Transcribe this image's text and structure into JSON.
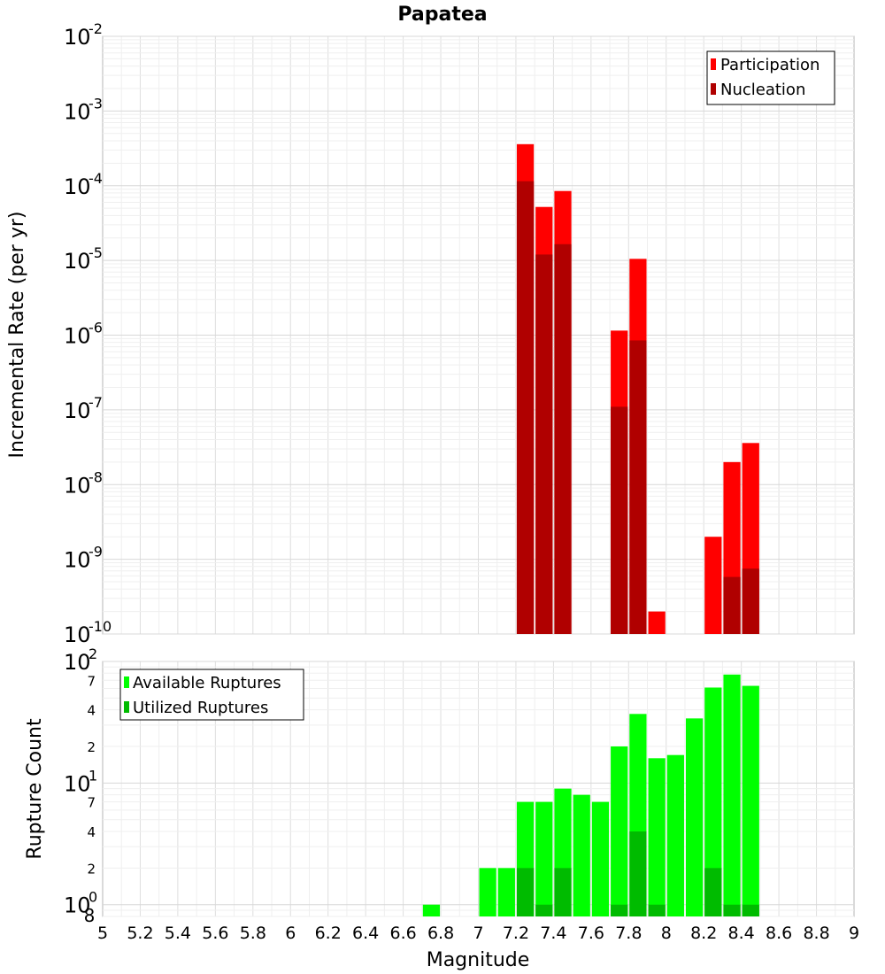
{
  "chart_data": [
    {
      "type": "bar",
      "title": "Papatea",
      "ylabel": "Incremental Rate (per yr)",
      "xlabel": "",
      "y_scale": "log",
      "xlim": [
        5,
        9
      ],
      "ylim": [
        1e-10,
        0.01
      ],
      "grid": true,
      "legend_position": "top-right",
      "bar_width": 0.1,
      "y_tick_labels": [
        {
          "base": "10",
          "exp": "-10"
        },
        {
          "base": "10",
          "exp": "-9"
        },
        {
          "base": "10",
          "exp": "-8"
        },
        {
          "base": "10",
          "exp": "-7"
        },
        {
          "base": "10",
          "exp": "-6"
        },
        {
          "base": "10",
          "exp": "-5"
        },
        {
          "base": "10",
          "exp": "-4"
        },
        {
          "base": "10",
          "exp": "-3"
        },
        {
          "base": "10",
          "exp": "-2"
        }
      ],
      "series": [
        {
          "name": "Participation",
          "color": "#ff0000",
          "points": [
            {
              "x": 7.25,
              "y": 0.00036
            },
            {
              "x": 7.35,
              "y": 5.2e-05
            },
            {
              "x": 7.45,
              "y": 8.5e-05
            },
            {
              "x": 7.75,
              "y": 1.15e-06
            },
            {
              "x": 7.85,
              "y": 1.05e-05
            },
            {
              "x": 7.95,
              "y": 2e-10
            },
            {
              "x": 8.25,
              "y": 2e-09
            },
            {
              "x": 8.35,
              "y": 2e-08
            },
            {
              "x": 8.45,
              "y": 3.6e-08
            }
          ]
        },
        {
          "name": "Nucleation",
          "color": "#b00000",
          "points": [
            {
              "x": 7.25,
              "y": 0.000115
            },
            {
              "x": 7.35,
              "y": 1.2e-05
            },
            {
              "x": 7.45,
              "y": 1.65e-05
            },
            {
              "x": 7.75,
              "y": 1.1e-07
            },
            {
              "x": 7.85,
              "y": 8.5e-07
            },
            {
              "x": 8.35,
              "y": 5.8e-10
            },
            {
              "x": 8.45,
              "y": 7.5e-10
            }
          ]
        }
      ]
    },
    {
      "type": "bar",
      "title": "",
      "ylabel": "Rupture Count",
      "xlabel": "Magnitude",
      "y_scale": "log",
      "xlim": [
        5,
        9
      ],
      "ylim": [
        0.8,
        100
      ],
      "grid": true,
      "legend_position": "top-left",
      "bar_width": 0.1,
      "x_tick_labels": [
        "5",
        "5.2",
        "5.4",
        "5.6",
        "5.8",
        "6",
        "6.2",
        "6.4",
        "6.6",
        "6.8",
        "7",
        "7.2",
        "7.4",
        "7.6",
        "7.8",
        "8",
        "8.2",
        "8.4",
        "8.6",
        "8.8",
        "9"
      ],
      "y_tick_labels": [
        {
          "base": "10",
          "exp": "0"
        },
        {
          "base": "10",
          "exp": "1"
        },
        {
          "base": "10",
          "exp": "2"
        }
      ],
      "y_minor_labels": [
        "2",
        "4",
        "7",
        "2",
        "4",
        "7"
      ],
      "y_bottom_label": "8",
      "series": [
        {
          "name": "Available Ruptures",
          "color": "#00ff00",
          "points": [
            {
              "x": 6.75,
              "y": 1
            },
            {
              "x": 7.05,
              "y": 2
            },
            {
              "x": 7.15,
              "y": 2
            },
            {
              "x": 7.25,
              "y": 7
            },
            {
              "x": 7.35,
              "y": 7
            },
            {
              "x": 7.45,
              "y": 9
            },
            {
              "x": 7.55,
              "y": 8
            },
            {
              "x": 7.65,
              "y": 7
            },
            {
              "x": 7.75,
              "y": 20
            },
            {
              "x": 7.85,
              "y": 37
            },
            {
              "x": 7.95,
              "y": 16
            },
            {
              "x": 8.05,
              "y": 17
            },
            {
              "x": 8.15,
              "y": 34
            },
            {
              "x": 8.25,
              "y": 61
            },
            {
              "x": 8.35,
              "y": 78
            },
            {
              "x": 8.45,
              "y": 63
            }
          ]
        },
        {
          "name": "Utilized Ruptures",
          "color": "#00bb00",
          "points": [
            {
              "x": 7.25,
              "y": 2
            },
            {
              "x": 7.35,
              "y": 1
            },
            {
              "x": 7.45,
              "y": 2
            },
            {
              "x": 7.75,
              "y": 1
            },
            {
              "x": 7.85,
              "y": 4
            },
            {
              "x": 7.95,
              "y": 1
            },
            {
              "x": 8.25,
              "y": 2
            },
            {
              "x": 8.35,
              "y": 1
            },
            {
              "x": 8.45,
              "y": 1
            }
          ]
        }
      ]
    }
  ]
}
